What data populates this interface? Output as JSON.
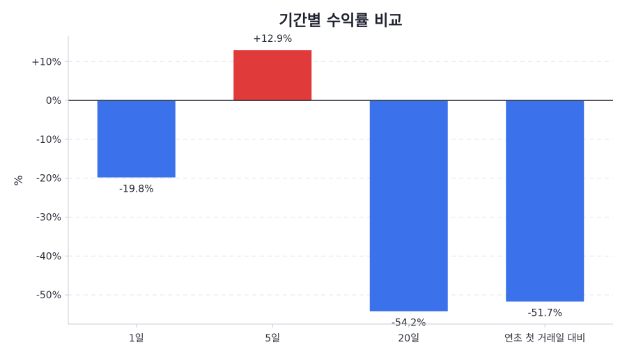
{
  "chart_data": {
    "type": "bar",
    "title": "기간별 수익률 비교",
    "xlabel": "",
    "ylabel": "%",
    "categories": [
      "1일",
      "5일",
      "20일",
      "연초 첫 거래일 대비"
    ],
    "values": [
      -19.8,
      12.9,
      -54.2,
      -51.7
    ],
    "value_labels": [
      "-19.8%",
      "+12.9%",
      "-54.2%",
      "-51.7%"
    ],
    "ylim": [
      -57.5,
      16.5
    ],
    "yticks": [
      10,
      0,
      -10,
      -20,
      -30,
      -40,
      -50
    ],
    "ytick_labels": [
      "+10%",
      "0%",
      "-10%",
      "-20%",
      "-30%",
      "-40%",
      "-50%"
    ],
    "grid": true,
    "colors": {
      "positive": "#e03a3a",
      "negative": "#3b72eb",
      "zero_line": "#2b2f3a",
      "grid": "#dfe3ea",
      "axis": "#c7ccd6"
    }
  }
}
